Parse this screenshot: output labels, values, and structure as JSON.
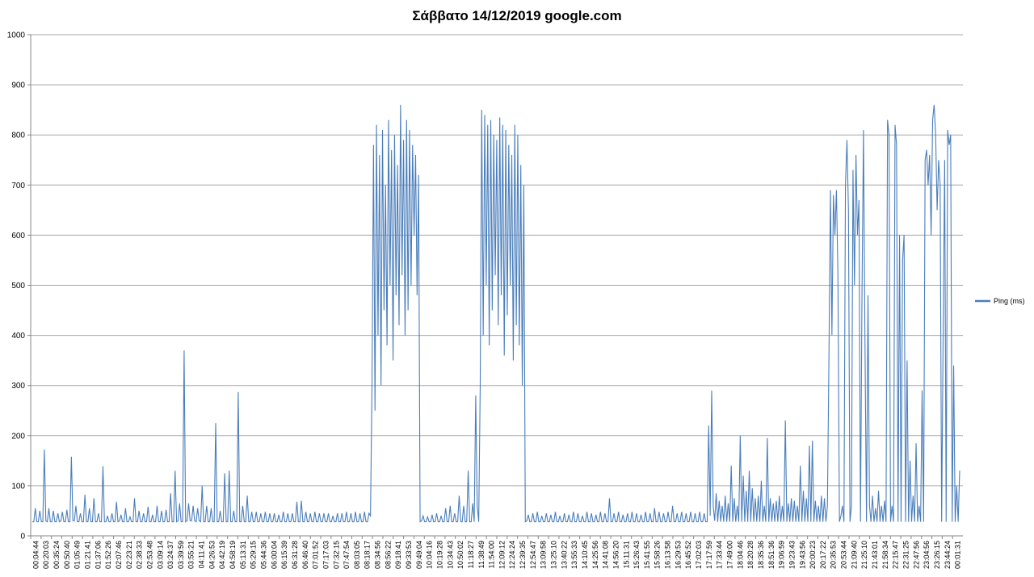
{
  "chart_data": {
    "type": "line",
    "title": "Σάββατο 14/12/2019 google.com",
    "xlabel": "",
    "ylabel": "",
    "ylim": [
      0,
      1000
    ],
    "yticks": [
      0,
      100,
      200,
      300,
      400,
      500,
      600,
      700,
      800,
      900,
      1000
    ],
    "grid": true,
    "legend_position": "right",
    "x": [
      "00:04:44",
      "00:20:03",
      "00:35:24",
      "00:50:40",
      "01:05:49",
      "01:21:41",
      "01:37:06",
      "01:52:26",
      "02:07:46",
      "02:23:21",
      "02:38:33",
      "02:53:48",
      "03:09:14",
      "03:24:37",
      "03:39:59",
      "03:55:21",
      "04:11:41",
      "04:26:53",
      "04:42:19",
      "04:58:19",
      "05:13:31",
      "05:29:15",
      "05:44:36",
      "06:00:04",
      "06:15:39",
      "06:31:28",
      "06:46:40",
      "07:01:52",
      "07:17:03",
      "07:32:15",
      "07:47:54",
      "08:03:05",
      "08:18:17",
      "08:34:56",
      "08:56:22",
      "09:18:41",
      "09:33:53",
      "09:49:04",
      "10:04:16",
      "10:19:28",
      "10:34:43",
      "10:50:02",
      "11:18:27",
      "11:38:49",
      "11:54:00",
      "12:09:12",
      "12:24:24",
      "12:39:35",
      "12:54:47",
      "13:09:58",
      "13:25:10",
      "13:40:22",
      "13:55:33",
      "14:10:45",
      "14:25:56",
      "14:41:08",
      "14:56:20",
      "15:11:31",
      "15:26:43",
      "15:41:55",
      "15:58:26",
      "16:13:58",
      "16:29:53",
      "16:45:52",
      "17:02:03",
      "17:17:59",
      "17:33:44",
      "17:49:00",
      "18:04:46",
      "18:20:28",
      "18:35:36",
      "18:51:36",
      "19:06:59",
      "19:23:43",
      "19:43:56",
      "20:00:23",
      "20:17:22",
      "20:35:53",
      "20:53:44",
      "21:09:40",
      "21:25:10",
      "21:43:01",
      "21:58:34",
      "22:15:47",
      "22:31:25",
      "22:47:56",
      "23:04:56",
      "23:26:15",
      "23:44:24",
      "00:01:31"
    ],
    "series": [
      {
        "name": "Ping (ms)",
        "color": "#4a7ebb",
        "segments": [
          [
            25,
            55,
            25
          ],
          [
            35,
            50,
            25
          ],
          [
            45,
            172,
            25
          ],
          [
            40,
            55,
            30
          ],
          [
            45,
            50,
            28
          ],
          [
            35,
            45,
            28
          ],
          [
            30,
            40,
            28
          ],
          [
            40,
            45,
            28
          ],
          [
            60,
            158,
            28
          ],
          [
            45,
            60,
            30
          ],
          [
            40,
            40,
            28
          ],
          [
            35,
            50,
            28
          ],
          [
            30,
            45,
            28
          ],
          [
            30,
            48,
            28
          ],
          [
            45,
            82,
            28
          ],
          [
            40,
            55,
            28
          ],
          [
            60,
            75,
            28
          ],
          [
            40,
            50,
            28
          ],
          [
            60,
            139,
            28
          ],
          [
            30,
            35,
            28
          ],
          [
            20,
            45,
            28
          ],
          [
            30,
            50,
            28
          ],
          [
            55,
            68,
            28
          ],
          [
            35,
            40,
            28
          ],
          [
            40,
            55,
            28
          ],
          [
            35,
            35,
            28
          ],
          [
            40,
            75,
            28
          ],
          [
            45,
            50,
            28
          ],
          [
            35,
            45,
            28
          ],
          [
            40,
            58,
            28
          ],
          [
            30,
            42,
            28
          ],
          [
            40,
            60,
            28
          ],
          [
            45,
            50,
            28
          ],
          [
            40,
            52,
            28
          ],
          [
            60,
            85,
            28
          ],
          [
            55,
            130,
            28
          ],
          [
            40,
            65,
            28
          ],
          [
            110,
            370,
            28
          ],
          [
            60,
            65,
            30
          ],
          [
            60,
            60,
            30
          ],
          [
            55,
            55,
            30
          ],
          [
            50,
            50,
            28
          ],
          [
            50,
            45,
            28
          ],
          [
            60,
            100,
            28
          ],
          [
            40,
            100,
            28
          ],
          [
            45,
            60,
            28
          ],
          [
            40,
            60,
            28
          ],
          [
            70,
            50,
            28
          ],
          [
            45,
            225,
            28
          ],
          [
            55,
            50,
            28
          ],
          [
            40,
            55,
            28
          ],
          [
            40,
            42,
            28
          ],
          [
            35,
            125,
            28
          ],
          [
            20,
            130,
            28
          ],
          [
            40,
            50,
            28
          ],
          [
            55,
            60,
            28
          ],
          [
            55,
            287,
            28
          ],
          [
            35,
            40,
            28
          ],
          [
            45,
            80,
            28
          ],
          [
            45,
            50,
            28
          ],
          [
            40,
            48,
            28
          ],
          [
            50,
            48,
            28
          ],
          [
            45,
            45,
            28
          ],
          [
            40,
            48,
            28
          ],
          [
            45,
            45,
            28
          ],
          [
            45,
            42,
            28
          ],
          [
            40,
            48,
            28
          ],
          [
            45,
            45,
            28
          ],
          [
            40,
            48,
            28
          ],
          [
            40,
            48,
            28
          ],
          [
            45,
            45,
            28
          ],
          [
            45,
            42,
            28
          ],
          [
            40,
            48,
            28
          ],
          [
            45,
            45,
            28
          ],
          [
            45,
            45,
            28
          ],
          [
            40,
            48,
            28
          ],
          [
            45,
            45,
            28
          ],
          [
            45,
            42,
            28
          ],
          [
            40,
            48,
            28
          ],
          [
            45,
            68,
            28
          ],
          [
            40,
            70,
            28
          ],
          [
            45,
            45,
            28
          ],
          [
            40,
            45,
            28
          ],
          [
            45,
            45,
            28
          ],
          [
            45,
            48,
            28
          ],
          [
            40,
            48,
            28
          ],
          [
            45,
            45,
            28
          ],
          [
            40,
            48,
            28
          ],
          [
            45,
            70,
            28
          ],
          [
            40,
            70,
            28
          ],
          [
            45,
            45,
            28
          ],
          [
            45,
            45,
            28
          ],
          [
            40,
            48,
            28
          ],
          [
            45,
            45,
            28
          ],
          [
            40,
            48,
            28
          ],
          [
            45,
            45,
            28
          ],
          [
            40,
            48,
            28
          ],
          [
            45,
            45,
            28
          ],
          [
            40,
            48,
            28
          ],
          [
            45,
            45,
            28
          ]
        ],
        "samples": [
          28,
          28,
          55,
          28,
          28,
          50,
          28,
          28,
          172,
          30,
          28,
          55,
          28,
          28,
          50,
          28,
          28,
          45,
          28,
          30,
          48,
          28,
          28,
          52,
          28,
          28,
          158,
          30,
          30,
          60,
          28,
          28,
          45,
          28,
          28,
          82,
          28,
          28,
          55,
          28,
          28,
          75,
          28,
          28,
          45,
          28,
          28,
          139,
          28,
          28,
          40,
          28,
          28,
          45,
          28,
          28,
          68,
          28,
          30,
          42,
          28,
          28,
          55,
          28,
          28,
          38,
          28,
          28,
          75,
          28,
          28,
          50,
          28,
          28,
          45,
          28,
          28,
          58,
          28,
          28,
          42,
          28,
          28,
          60,
          28,
          28,
          50,
          28,
          28,
          52,
          28,
          28,
          85,
          28,
          28,
          130,
          28,
          30,
          65,
          28,
          28,
          370,
          28,
          30,
          65,
          30,
          30,
          60,
          30,
          28,
          55,
          30,
          28,
          100,
          28,
          28,
          60,
          28,
          28,
          55,
          28,
          28,
          225,
          28,
          28,
          50,
          28,
          28,
          125,
          28,
          28,
          130,
          28,
          28,
          50,
          28,
          28,
          287,
          28,
          28,
          60,
          28,
          28,
          80,
          28,
          28,
          48,
          28,
          28,
          48,
          28,
          28,
          45,
          28,
          28,
          48,
          28,
          28,
          45,
          28,
          28,
          45,
          28,
          28,
          42,
          28,
          28,
          48,
          28,
          28,
          45,
          28,
          28,
          45,
          28,
          28,
          68,
          28,
          28,
          70,
          28,
          28,
          48,
          28,
          28,
          45,
          28,
          28,
          48,
          28,
          28,
          45,
          28,
          28,
          45,
          28,
          28,
          45,
          28,
          28,
          40,
          28,
          28,
          45,
          28,
          28,
          45,
          28,
          28,
          48,
          28,
          28,
          45,
          28,
          28,
          48,
          28,
          28,
          45,
          28,
          28,
          48,
          28,
          28,
          45,
          40,
          300,
          780,
          250,
          820,
          400,
          760,
          300,
          810,
          450,
          700,
          380,
          830,
          500,
          770,
          350,
          800,
          480,
          740,
          420,
          860,
          520,
          790,
          400,
          830,
          450,
          810,
          500,
          780,
          600,
          760,
          480,
          720,
          28,
          30,
          40,
          28,
          28,
          38,
          28,
          28,
          42,
          28,
          28,
          45,
          28,
          28,
          40,
          28,
          28,
          55,
          28,
          28,
          60,
          28,
          28,
          45,
          28,
          28,
          80,
          28,
          28,
          60,
          28,
          28,
          130,
          28,
          28,
          65,
          28,
          280,
          60,
          28,
          300,
          850,
          400,
          840,
          500,
          820,
          380,
          830,
          450,
          800,
          520,
          790,
          420,
          835,
          480,
          820,
          360,
          810,
          440,
          780,
          500,
          760,
          350,
          820,
          420,
          800,
          380,
          740,
          300,
          700,
          28,
          30,
          42,
          28,
          28,
          45,
          28,
          28,
          48,
          28,
          28,
          40,
          28,
          28,
          45,
          28,
          28,
          42,
          28,
          28,
          48,
          28,
          28,
          40,
          28,
          28,
          45,
          28,
          28,
          42,
          28,
          28,
          48,
          28,
          28,
          45,
          28,
          28,
          40,
          28,
          28,
          48,
          28,
          28,
          45,
          28,
          28,
          42,
          28,
          28,
          48,
          28,
          28,
          45,
          28,
          28,
          75,
          28,
          28,
          45,
          28,
          28,
          48,
          28,
          28,
          42,
          28,
          28,
          45,
          28,
          28,
          48,
          28,
          28,
          45,
          28,
          28,
          42,
          28,
          28,
          48,
          28,
          28,
          45,
          28,
          28,
          55,
          28,
          28,
          48,
          28,
          28,
          45,
          28,
          28,
          48,
          28,
          28,
          60,
          28,
          28,
          45,
          28,
          28,
          48,
          28,
          28,
          45,
          28,
          28,
          48,
          28,
          28,
          45,
          28,
          28,
          48,
          28,
          28,
          45,
          28,
          28,
          220,
          40,
          290,
          60,
          30,
          85,
          28,
          70,
          28,
          60,
          28,
          80,
          28,
          65,
          28,
          140,
          28,
          75,
          28,
          60,
          28,
          200,
          28,
          120,
          28,
          90,
          28,
          130,
          28,
          95,
          28,
          75,
          28,
          80,
          28,
          110,
          28,
          60,
          28,
          195,
          28,
          75,
          28,
          65,
          28,
          70,
          28,
          80,
          28,
          60,
          28,
          230,
          28,
          65,
          28,
          75,
          28,
          70,
          28,
          60,
          28,
          140,
          28,
          90,
          28,
          75,
          28,
          180,
          28,
          190,
          28,
          70,
          28,
          60,
          28,
          80,
          28,
          75,
          28,
          60,
          350,
          690,
          400,
          680,
          600,
          690,
          520,
          28,
          40,
          60,
          28,
          700,
          790,
          650,
          28,
          60,
          730,
          500,
          760,
          600,
          670,
          28,
          480,
          810,
          380,
          28,
          480,
          60,
          28,
          80,
          28,
          55,
          28,
          90,
          28,
          60,
          28,
          70,
          28,
          830,
          800,
          28,
          60,
          28,
          820,
          780,
          28,
          600,
          28,
          550,
          600,
          28,
          350,
          28,
          150,
          28,
          80,
          28,
          185,
          28,
          60,
          28,
          290,
          28,
          750,
          770,
          700,
          760,
          600,
          830,
          860,
          800,
          650,
          750,
          700,
          28,
          400,
          750,
          28,
          810,
          780,
          800,
          28,
          340,
          28,
          100,
          28,
          130
        ]
      }
    ]
  }
}
